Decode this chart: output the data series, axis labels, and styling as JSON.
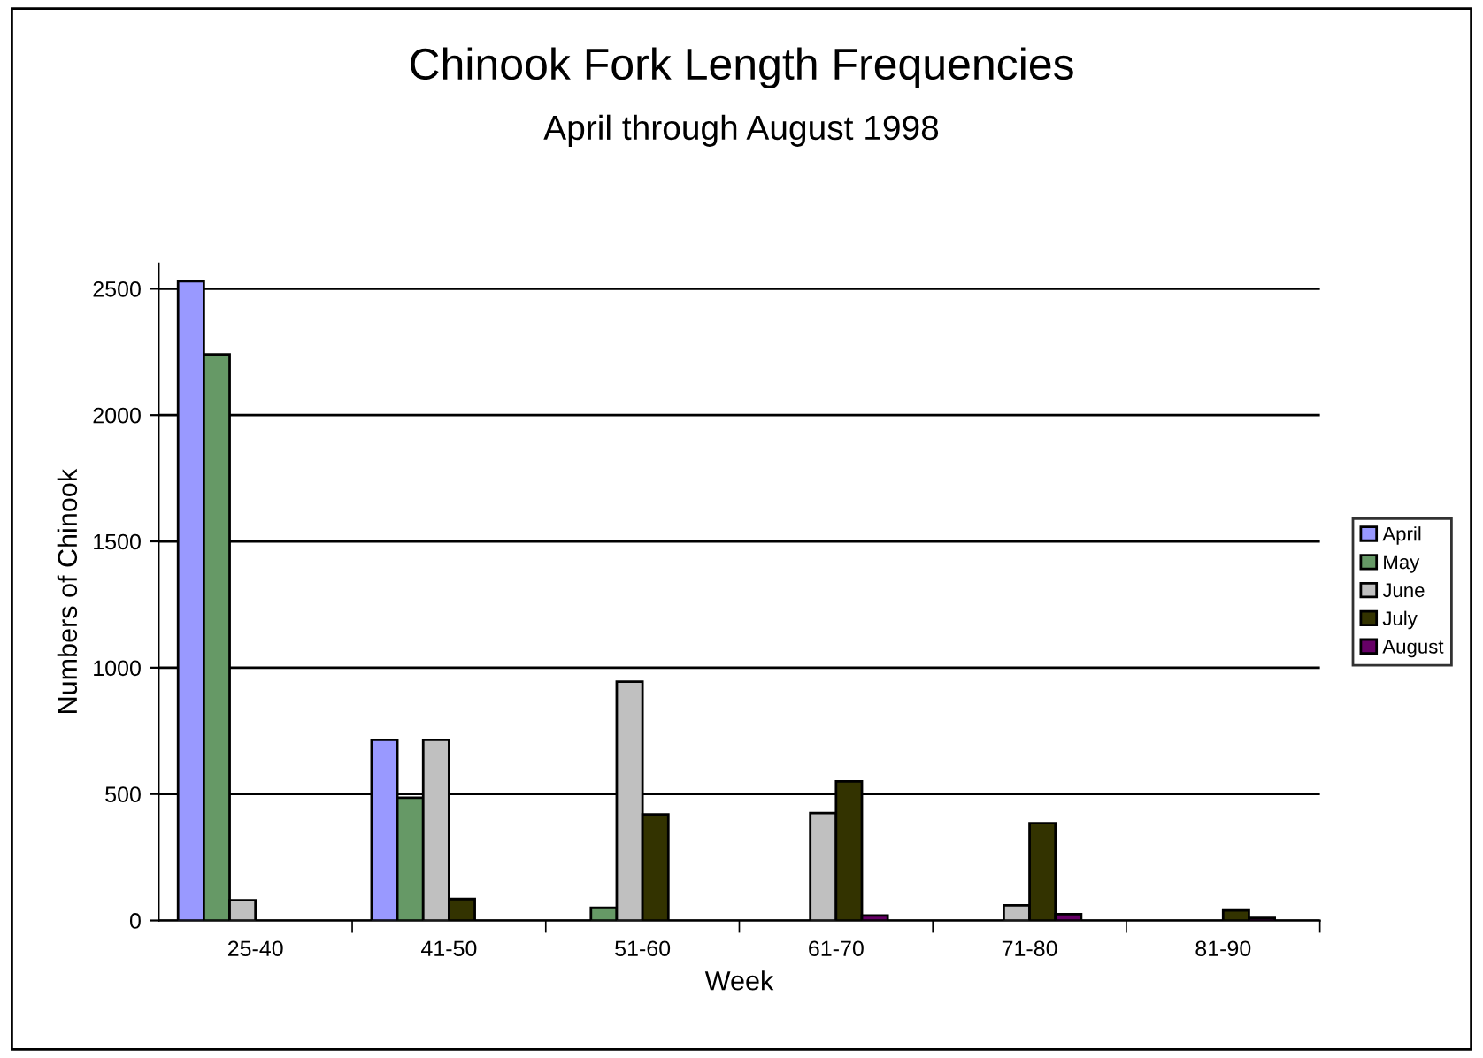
{
  "chart_data": {
    "type": "bar",
    "title": "Chinook Fork Length Frequencies",
    "subtitle": "April through August 1998",
    "xlabel": "Week",
    "ylabel": "Numbers of Chinook",
    "categories": [
      "25-40",
      "41-50",
      "51-60",
      "61-70",
      "71-80",
      "81-90"
    ],
    "series": [
      {
        "name": "April",
        "color": "#9999ff",
        "values": [
          2530,
          715,
          null,
          null,
          null,
          null
        ]
      },
      {
        "name": "May",
        "color": "#669966",
        "values": [
          2240,
          485,
          50,
          null,
          null,
          null
        ]
      },
      {
        "name": "June",
        "color": "#c0c0c0",
        "values": [
          80,
          715,
          945,
          425,
          60,
          null
        ]
      },
      {
        "name": "July",
        "color": "#333300",
        "values": [
          null,
          85,
          420,
          550,
          385,
          40
        ]
      },
      {
        "name": "August",
        "color": "#660066",
        "values": [
          null,
          null,
          null,
          20,
          25,
          10
        ]
      }
    ],
    "ylim": [
      0,
      2600
    ],
    "yticks": [
      0,
      500,
      1000,
      1500,
      2000,
      2500
    ],
    "grid": "y",
    "legend": "right"
  }
}
